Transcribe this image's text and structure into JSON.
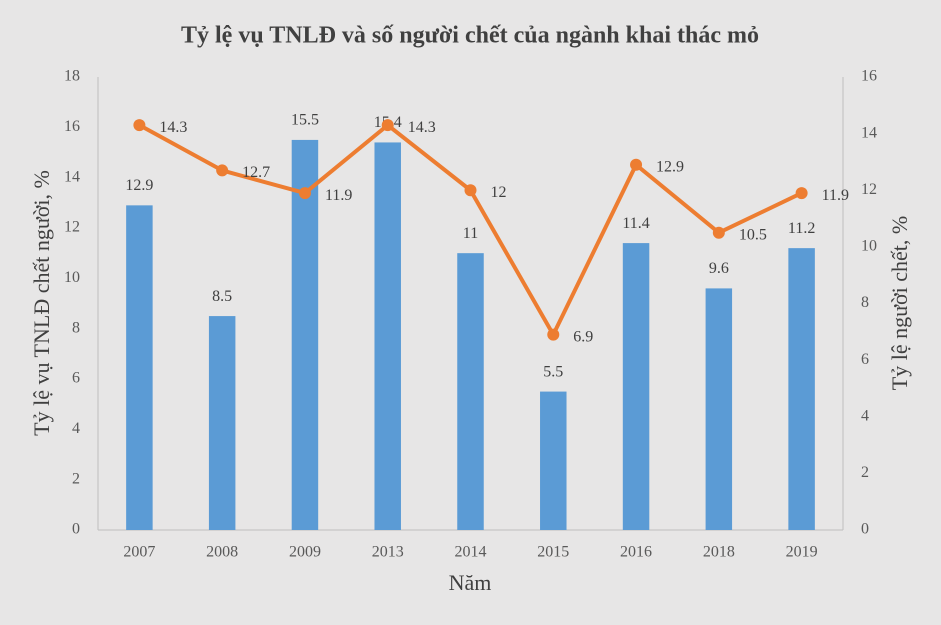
{
  "chart_data": {
    "type": "combo",
    "title": "Tỷ lệ vụ TNLĐ và số người chết của ngành khai thác mỏ",
    "xlabel": "Năm",
    "ylabel": "Tỷ lệ vụ TNLĐ chết người, %",
    "y2label": "Tỷ lệ người chết, %",
    "categories": [
      "2007",
      "2008",
      "2009",
      "2013",
      "2014",
      "2015",
      "2016",
      "2018",
      "2019"
    ],
    "series": [
      {
        "type": "bar",
        "color": "#5b9bd5",
        "values": [
          12.9,
          8.5,
          15.5,
          15.4,
          11,
          5.5,
          11.4,
          9.6,
          11.2
        ]
      },
      {
        "type": "line",
        "axis": "y2",
        "color": "#ed7d31",
        "values": [
          14.3,
          12.7,
          11.9,
          14.3,
          12,
          6.9,
          12.9,
          10.5,
          11.9
        ]
      }
    ],
    "ylim": [
      0,
      18
    ],
    "yticks": [
      0,
      2,
      4,
      6,
      8,
      10,
      12,
      14,
      16,
      18
    ],
    "y2lim": [
      0,
      16
    ],
    "y2ticks": [
      0,
      2,
      4,
      6,
      8,
      10,
      12,
      14,
      16
    ],
    "grid": false
  }
}
